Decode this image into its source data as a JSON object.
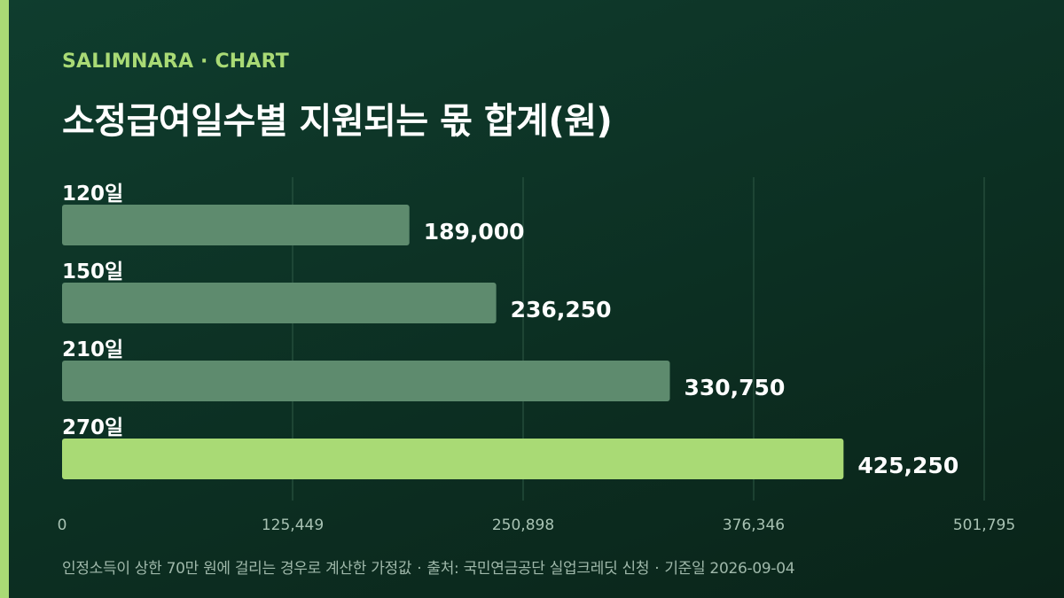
{
  "header": {
    "brand": "SALIMNARA · CHART",
    "title": "소정급여일수별 지원되는 몫 합계(원)"
  },
  "colors": {
    "background_top": "#0f3d2e",
    "background_bottom": "#0a2419",
    "accent": "#a9da75",
    "bar_default": "#5e8b6e",
    "bar_highlight": "#a9da75",
    "grid": "#2f5a46",
    "tick_label": "#a8c2b3",
    "footnote": "#9fb8aa"
  },
  "chart_data": {
    "type": "bar",
    "orientation": "horizontal",
    "categories": [
      "120일",
      "150일",
      "210일",
      "270일"
    ],
    "values": [
      189000,
      236250,
      330750,
      425250
    ],
    "value_labels": [
      "189,000",
      "236,250",
      "330,750",
      "425,250"
    ],
    "highlight_index": 3,
    "xlim": [
      0,
      501795
    ],
    "x_ticks": [
      0,
      125449,
      250898,
      376346,
      501795
    ],
    "x_tick_labels": [
      "0",
      "125,449",
      "250,898",
      "376,346",
      "501,795"
    ],
    "grid": true,
    "legend": "none"
  },
  "footer": {
    "note": "인정소득이 상한 70만 원에 걸리는 경우로 계산한 가정값",
    "source": "출처: 국민연금공단 실업크레딧 신청",
    "date": "기준일 2026-09-04",
    "separator": "·"
  }
}
